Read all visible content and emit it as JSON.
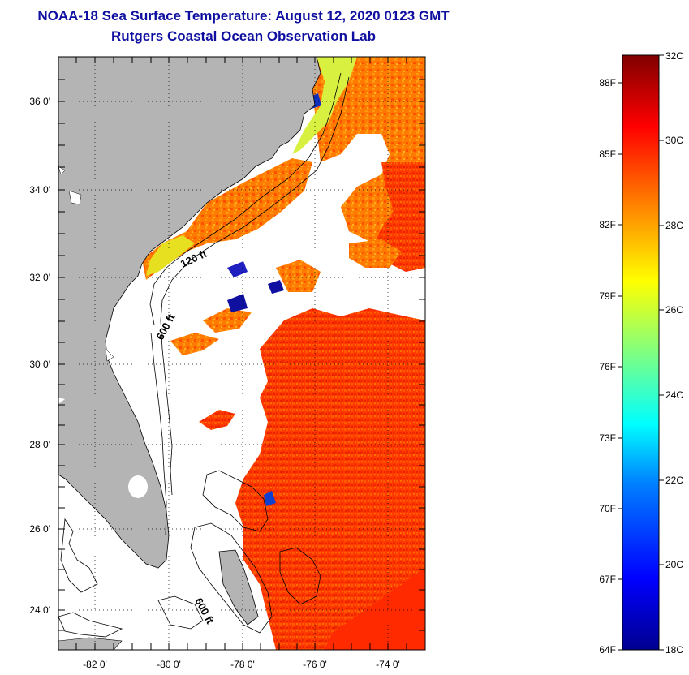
{
  "title": {
    "line1": "NOAA-18 Sea Surface Temperature:  August 12, 2020 0123 GMT",
    "line2": "Rutgers Coastal Ocean Observation Lab"
  },
  "map": {
    "lat_ticks": [
      "36 0'",
      "34 0'",
      "32 0'",
      "30 0'",
      "28 0'",
      "26 0'",
      "24 0'"
    ],
    "lon_ticks": [
      "-82 0'",
      "-80 0'",
      "-78 0'",
      "-76 0'",
      "-74 0'"
    ],
    "contour_labels": [
      "120 ft",
      "600 ft",
      "600 ft"
    ],
    "land_color": "#b4b4b4",
    "cloud_color": "#ffffff"
  },
  "colorbar": {
    "fahrenheit_labels": [
      "88F",
      "85F",
      "82F",
      "79F",
      "76F",
      "73F",
      "70F",
      "67F",
      "64F"
    ],
    "celsius_labels": [
      "32C",
      "30C",
      "28C",
      "26C",
      "24C",
      "22C",
      "20C",
      "18C"
    ],
    "range_celsius": [
      18,
      32
    ],
    "colors": [
      "#00008f",
      "#0000ff",
      "#0080ff",
      "#00ffff",
      "#80ff80",
      "#ffff00",
      "#ff8000",
      "#ff0000",
      "#800000"
    ]
  }
}
